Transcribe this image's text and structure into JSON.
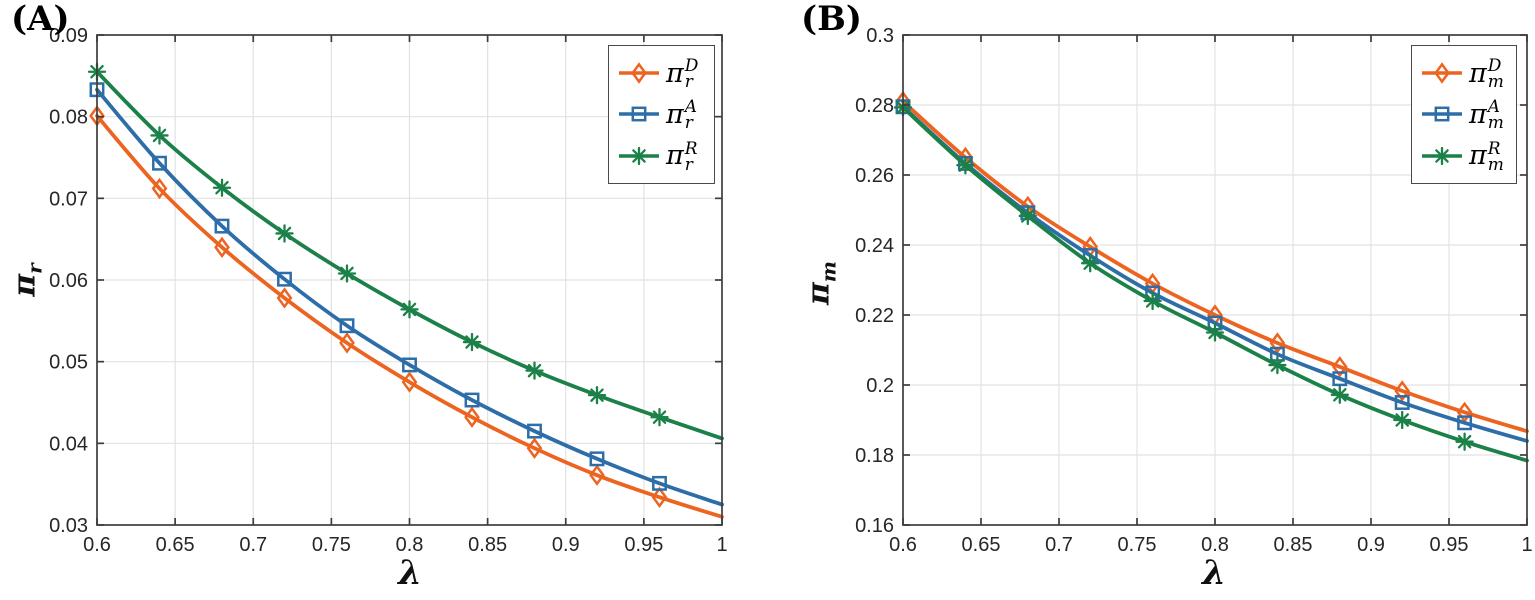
{
  "figure": {
    "background": "#ffffff"
  },
  "colors": {
    "grid": "#e2e2e2",
    "axis": "#3d3d3d",
    "tick_text": "#262626",
    "legend_border": "#4a4a4a",
    "series_orange": "#ec6420",
    "series_blue": "#2d6ea8",
    "series_green": "#1b8148"
  },
  "chart_data": [
    {
      "type": "line",
      "corner_label": "(A)",
      "xlabel": "λ",
      "ylabel_base": "π",
      "ylabel_sub": "r",
      "xlim": [
        0.6,
        1.0
      ],
      "ylim": [
        0.03,
        0.09
      ],
      "grid": true,
      "legend_position": "upper right",
      "x_ticks": [
        0.6,
        0.65,
        0.7,
        0.75,
        0.8,
        0.85,
        0.9,
        0.95,
        1
      ],
      "x_tick_labels": [
        "0.6",
        "0.65",
        "0.7",
        "0.75",
        "0.8",
        "0.85",
        "0.9",
        "0.95",
        "1"
      ],
      "y_ticks": [
        0.03,
        0.04,
        0.05,
        0.06,
        0.07,
        0.08,
        0.09
      ],
      "y_tick_labels": [
        "0.03",
        "0.04",
        "0.05",
        "0.06",
        "0.07",
        "0.08",
        "0.09"
      ],
      "x": [
        0.6,
        0.64,
        0.68,
        0.72,
        0.76,
        0.8,
        0.84,
        0.88,
        0.92,
        0.96,
        1.0
      ],
      "marker_on_last_point": false,
      "series": [
        {
          "name": "pi_r_D",
          "legend": {
            "base": "π",
            "sup": "D",
            "sub": "r"
          },
          "color": "#ec6420",
          "marker": "diamond",
          "values": [
            0.0801,
            0.0712,
            0.064,
            0.0578,
            0.0523,
            0.0475,
            0.0432,
            0.0394,
            0.0361,
            0.0334,
            0.031
          ]
        },
        {
          "name": "pi_r_A",
          "legend": {
            "base": "π",
            "sup": "A",
            "sub": "r"
          },
          "color": "#2d6ea8",
          "marker": "square",
          "values": [
            0.0833,
            0.0743,
            0.0666,
            0.0601,
            0.0544,
            0.0496,
            0.0453,
            0.0415,
            0.0381,
            0.0351,
            0.0325
          ]
        },
        {
          "name": "pi_r_R",
          "legend": {
            "base": "π",
            "sup": "R",
            "sub": "r"
          },
          "color": "#1b8148",
          "marker": "asterisk",
          "values": [
            0.0855,
            0.0777,
            0.0713,
            0.0657,
            0.0608,
            0.0564,
            0.0524,
            0.0489,
            0.0459,
            0.0432,
            0.0406
          ]
        }
      ]
    },
    {
      "type": "line",
      "corner_label": "(B)",
      "xlabel": "λ",
      "ylabel_base": "π",
      "ylabel_sub": "m",
      "xlim": [
        0.6,
        1.0
      ],
      "ylim": [
        0.16,
        0.3
      ],
      "grid": true,
      "legend_position": "upper right",
      "x_ticks": [
        0.6,
        0.65,
        0.7,
        0.75,
        0.8,
        0.85,
        0.9,
        0.95,
        1
      ],
      "x_tick_labels": [
        "0.6",
        "0.65",
        "0.7",
        "0.75",
        "0.8",
        "0.85",
        "0.9",
        "0.95",
        "1"
      ],
      "y_ticks": [
        0.16,
        0.18,
        0.2,
        0.22,
        0.24,
        0.26,
        0.28,
        0.3
      ],
      "y_tick_labels": [
        "0.16",
        "0.18",
        "0.2",
        "0.22",
        "0.24",
        "0.26",
        "0.28",
        "0.3"
      ],
      "x": [
        0.6,
        0.64,
        0.68,
        0.72,
        0.76,
        0.8,
        0.84,
        0.88,
        0.92,
        0.96,
        1.0
      ],
      "marker_on_last_point": false,
      "series": [
        {
          "name": "pi_m_D",
          "legend": {
            "base": "π",
            "sup": "D",
            "sub": "m"
          },
          "color": "#ec6420",
          "marker": "diamond",
          "values": [
            0.281,
            0.265,
            0.251,
            0.2395,
            0.229,
            0.22,
            0.212,
            0.2052,
            0.1983,
            0.1922,
            0.1868
          ]
        },
        {
          "name": "pi_m_A",
          "legend": {
            "base": "π",
            "sup": "A",
            "sub": "m"
          },
          "color": "#2d6ea8",
          "marker": "square",
          "values": [
            0.2795,
            0.2633,
            0.2492,
            0.237,
            0.2263,
            0.2177,
            0.2088,
            0.2018,
            0.195,
            0.1892,
            0.184
          ]
        },
        {
          "name": "pi_m_R",
          "legend": {
            "base": "π",
            "sup": "R",
            "sub": "m"
          },
          "color": "#1b8148",
          "marker": "asterisk",
          "values": [
            0.2793,
            0.2628,
            0.2483,
            0.2348,
            0.224,
            0.215,
            0.2057,
            0.1972,
            0.19,
            0.1838,
            0.1784
          ]
        }
      ]
    }
  ]
}
